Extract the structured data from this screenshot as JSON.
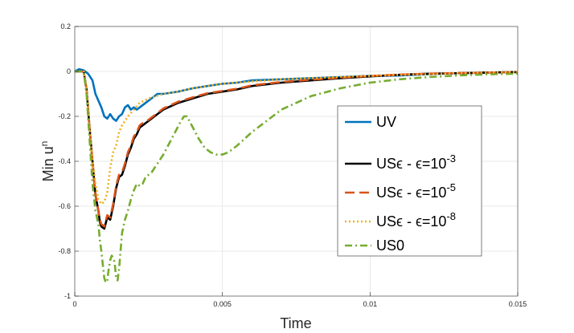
{
  "chart_data": {
    "type": "line",
    "xlabel": "Time",
    "ylabel": "Min u",
    "ylabel_sup": "n",
    "xlim": [
      0,
      0.015
    ],
    "ylim": [
      -1,
      0.2
    ],
    "xticks": [
      0,
      0.005,
      0.01,
      0.015
    ],
    "xtick_labels": [
      "0",
      "0.005",
      "0.01",
      "0.015"
    ],
    "yticks": [
      0.2,
      0,
      -0.2,
      -0.4,
      -0.6,
      -0.8,
      -1
    ],
    "ytick_labels": [
      "0.2",
      "0",
      "-0.2",
      "-0.4",
      "-0.6",
      "-0.8",
      "-1"
    ],
    "grid": true,
    "legend_position": "center-right",
    "series": [
      {
        "name": "UV",
        "color": "#0072BD",
        "dash": "solid",
        "x": [
          0,
          0.00015,
          0.0003,
          0.00045,
          0.0006,
          0.0007,
          0.0008,
          0.0009,
          0.001,
          0.0011,
          0.0012,
          0.0013,
          0.0014,
          0.0015,
          0.0016,
          0.0017,
          0.0018,
          0.0019,
          0.002,
          0.0021,
          0.0022,
          0.0024,
          0.0026,
          0.0028,
          0.003,
          0.0035,
          0.004,
          0.0045,
          0.005,
          0.0055,
          0.006,
          0.007,
          0.008,
          0.009,
          0.01,
          0.011,
          0.012,
          0.013,
          0.014,
          0.015
        ],
        "y": [
          0,
          0.01,
          0.005,
          -0.01,
          -0.04,
          -0.1,
          -0.13,
          -0.16,
          -0.2,
          -0.21,
          -0.19,
          -0.21,
          -0.22,
          -0.2,
          -0.19,
          -0.16,
          -0.15,
          -0.17,
          -0.16,
          -0.17,
          -0.16,
          -0.14,
          -0.12,
          -0.1,
          -0.1,
          -0.09,
          -0.075,
          -0.065,
          -0.055,
          -0.05,
          -0.04,
          -0.035,
          -0.03,
          -0.025,
          -0.02,
          -0.018,
          -0.012,
          -0.008,
          -0.005,
          -0.003
        ]
      },
      {
        "name": "USϵ - ϵ=10",
        "name_sup": "-3",
        "color": "#000000",
        "dash": "solid",
        "x": [
          0,
          0.00015,
          0.0003,
          0.0004,
          0.0005,
          0.0006,
          0.0007,
          0.0008,
          0.00085,
          0.0009,
          0.001,
          0.0011,
          0.0012,
          0.00125,
          0.0013,
          0.0014,
          0.0015,
          0.0016,
          0.0017,
          0.0018,
          0.0019,
          0.002,
          0.0021,
          0.0022,
          0.0023,
          0.0025,
          0.0027,
          0.003,
          0.0035,
          0.004,
          0.0045,
          0.005,
          0.0055,
          0.006,
          0.007,
          0.008,
          0.009,
          0.01,
          0.011,
          0.012,
          0.013,
          0.014,
          0.015
        ],
        "y": [
          0,
          0,
          0,
          -0.08,
          -0.25,
          -0.4,
          -0.55,
          -0.62,
          -0.67,
          -0.69,
          -0.7,
          -0.65,
          -0.66,
          -0.63,
          -0.6,
          -0.52,
          -0.47,
          -0.46,
          -0.42,
          -0.37,
          -0.34,
          -0.3,
          -0.28,
          -0.25,
          -0.24,
          -0.22,
          -0.2,
          -0.17,
          -0.14,
          -0.12,
          -0.1,
          -0.09,
          -0.08,
          -0.065,
          -0.05,
          -0.04,
          -0.03,
          -0.022,
          -0.015,
          -0.01,
          -0.008,
          -0.005,
          -0.003
        ]
      },
      {
        "name": "USϵ - ϵ=10",
        "name_sup": "-5",
        "color": "#D95319",
        "dash": "12,6",
        "x": [
          0,
          0.00015,
          0.0003,
          0.0004,
          0.0005,
          0.0006,
          0.0007,
          0.0008,
          0.00085,
          0.0009,
          0.001,
          0.0011,
          0.0012,
          0.00125,
          0.0013,
          0.0014,
          0.0015,
          0.0016,
          0.0017,
          0.0018,
          0.0019,
          0.002,
          0.0021,
          0.0022,
          0.0023,
          0.0025,
          0.0027,
          0.003,
          0.0035,
          0.004,
          0.0045,
          0.005,
          0.0055,
          0.006,
          0.007,
          0.008,
          0.009,
          0.01,
          0.011,
          0.012,
          0.013,
          0.014,
          0.015
        ],
        "y": [
          0,
          0,
          0,
          -0.08,
          -0.25,
          -0.4,
          -0.55,
          -0.62,
          -0.66,
          -0.68,
          -0.69,
          -0.64,
          -0.65,
          -0.62,
          -0.59,
          -0.51,
          -0.46,
          -0.45,
          -0.41,
          -0.36,
          -0.33,
          -0.29,
          -0.27,
          -0.24,
          -0.23,
          -0.215,
          -0.195,
          -0.165,
          -0.135,
          -0.115,
          -0.097,
          -0.087,
          -0.077,
          -0.062,
          -0.047,
          -0.037,
          -0.028,
          -0.02,
          -0.014,
          -0.01,
          -0.007,
          -0.005,
          -0.003
        ]
      },
      {
        "name": "USϵ - ϵ=10",
        "name_sup": "-8",
        "color": "#EDB120",
        "dash": "2,3",
        "x": [
          0,
          0.00015,
          0.0003,
          0.0004,
          0.0005,
          0.0006,
          0.0007,
          0.0008,
          0.0009,
          0.001,
          0.0011,
          0.0012,
          0.0013,
          0.0014,
          0.0015,
          0.0016,
          0.0017,
          0.0018,
          0.002,
          0.0022,
          0.0025,
          0.003,
          0.0035,
          0.004,
          0.0045,
          0.005,
          0.006,
          0.007,
          0.008,
          0.009,
          0.01,
          0.011,
          0.012,
          0.013,
          0.014,
          0.015
        ],
        "y": [
          0,
          0,
          0,
          -0.08,
          -0.25,
          -0.4,
          -0.5,
          -0.57,
          -0.59,
          -0.58,
          -0.54,
          -0.43,
          -0.36,
          -0.33,
          -0.27,
          -0.24,
          -0.22,
          -0.2,
          -0.17,
          -0.14,
          -0.12,
          -0.1,
          -0.09,
          -0.075,
          -0.065,
          -0.055,
          -0.045,
          -0.035,
          -0.03,
          -0.025,
          -0.02,
          -0.015,
          -0.012,
          -0.008,
          -0.005,
          -0.003
        ]
      },
      {
        "name": "US0",
        "color": "#77AC30",
        "dash": "9,4,2,4",
        "x": [
          0,
          0.00015,
          0.0003,
          0.0004,
          0.0005,
          0.0006,
          0.0007,
          0.0008,
          0.00085,
          0.0009,
          0.00095,
          0.001,
          0.00105,
          0.0011,
          0.00115,
          0.0012,
          0.00125,
          0.0013,
          0.00135,
          0.0014,
          0.00145,
          0.0015,
          0.0016,
          0.0017,
          0.0018,
          0.0019,
          0.002,
          0.0021,
          0.0022,
          0.0023,
          0.0024,
          0.0026,
          0.0028,
          0.003,
          0.0032,
          0.0034,
          0.0036,
          0.0037,
          0.0038,
          0.004,
          0.0042,
          0.0044,
          0.0046,
          0.0048,
          0.005,
          0.0052,
          0.0055,
          0.006,
          0.0065,
          0.007,
          0.008,
          0.009,
          0.01,
          0.011,
          0.012,
          0.013,
          0.014,
          0.015
        ],
        "y": [
          0,
          0,
          0,
          -0.1,
          -0.3,
          -0.5,
          -0.62,
          -0.68,
          -0.75,
          -0.8,
          -0.86,
          -0.92,
          -0.94,
          -0.93,
          -0.88,
          -0.84,
          -0.82,
          -0.83,
          -0.85,
          -0.92,
          -0.93,
          -0.88,
          -0.72,
          -0.66,
          -0.62,
          -0.57,
          -0.53,
          -0.5,
          -0.51,
          -0.5,
          -0.47,
          -0.45,
          -0.41,
          -0.37,
          -0.32,
          -0.27,
          -0.22,
          -0.2,
          -0.2,
          -0.25,
          -0.3,
          -0.34,
          -0.36,
          -0.37,
          -0.37,
          -0.36,
          -0.33,
          -0.27,
          -0.22,
          -0.17,
          -0.11,
          -0.075,
          -0.05,
          -0.035,
          -0.025,
          -0.018,
          -0.013,
          -0.01
        ]
      }
    ]
  }
}
